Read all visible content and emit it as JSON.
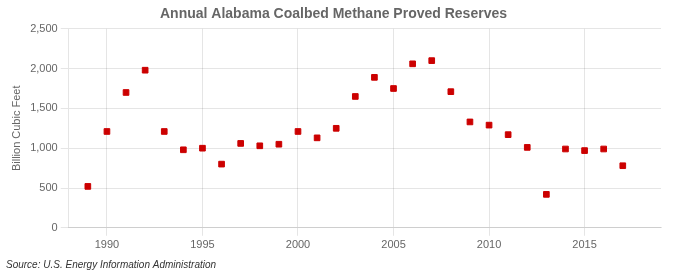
{
  "chart_data": {
    "type": "scatter",
    "title": "Annual Alabama Coalbed Methane Proved Reserves",
    "ylabel": "Billion Cubic Feet",
    "annotation": "Source: U.S. Energy Information Administration",
    "x": [
      1989,
      1990,
      1991,
      1992,
      1993,
      1994,
      1995,
      1996,
      1997,
      1998,
      1999,
      2000,
      2001,
      2002,
      2003,
      2004,
      2005,
      2006,
      2007,
      2008,
      2009,
      2010,
      2011,
      2012,
      2013,
      2014,
      2015,
      2016,
      2017
    ],
    "values": [
      520,
      1210,
      1700,
      1980,
      1210,
      980,
      1000,
      800,
      1060,
      1030,
      1050,
      1210,
      1130,
      1250,
      1650,
      1890,
      1750,
      2060,
      2100,
      1710,
      1330,
      1290,
      1170,
      1010,
      420,
      990,
      970,
      990,
      780
    ],
    "color": "#cc0000",
    "marker": "square",
    "xlim": [
      1988,
      2019
    ],
    "ylim": [
      0,
      2500
    ],
    "xticks": [
      1990,
      1995,
      2000,
      2005,
      2010,
      2015
    ],
    "yticks": [
      0,
      500,
      {
        "value": 1000,
        "label": "1,000"
      },
      {
        "value": 1500,
        "label": "1,500"
      },
      {
        "value": 2000,
        "label": "2,000"
      },
      {
        "value": 2500,
        "label": "2,500"
      }
    ],
    "grid": true
  }
}
